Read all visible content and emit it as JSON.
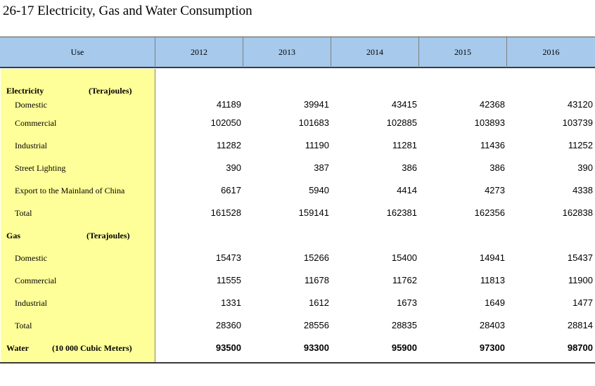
{
  "title": "26-17  Electricity, Gas and Water Consumption",
  "header": {
    "use": "Use",
    "years": [
      "2012",
      "2013",
      "2014",
      "2015",
      "2016"
    ]
  },
  "sections": {
    "electricity": {
      "label": "Electricity",
      "unit": "(Terajoules)",
      "rows": [
        {
          "label": "Domestic",
          "values": [
            "41189",
            "39941",
            "43415",
            "42368",
            "43120"
          ]
        },
        {
          "label": "Commercial",
          "values": [
            "102050",
            "101683",
            "102885",
            "103893",
            "103739"
          ]
        },
        {
          "label": "Industrial",
          "values": [
            "11282",
            "11190",
            "11281",
            "11436",
            "11252"
          ]
        },
        {
          "label": "Street Lighting",
          "values": [
            "390",
            "387",
            "386",
            "386",
            "390"
          ]
        },
        {
          "label": "Export to the Mainland of China",
          "values": [
            "6617",
            "5940",
            "4414",
            "4273",
            "4338"
          ]
        },
        {
          "label": "Total",
          "values": [
            "161528",
            "159141",
            "162381",
            "162356",
            "162838"
          ]
        }
      ]
    },
    "gas": {
      "label": "Gas",
      "unit": "(Terajoules)",
      "rows": [
        {
          "label": "Domestic",
          "values": [
            "15473",
            "15266",
            "15400",
            "14941",
            "15437"
          ]
        },
        {
          "label": "Commercial",
          "values": [
            "11555",
            "11678",
            "11762",
            "11813",
            "11900"
          ]
        },
        {
          "label": "Industrial",
          "values": [
            "1331",
            "1612",
            "1673",
            "1649",
            "1477"
          ]
        },
        {
          "label": "Total",
          "values": [
            "28360",
            "28556",
            "28835",
            "28403",
            "28814"
          ]
        }
      ]
    },
    "water": {
      "label": "Water",
      "unit": "(10 000 Cubic Meters)",
      "values": [
        "93500",
        "93300",
        "95900",
        "97300",
        "98700"
      ]
    }
  },
  "colors": {
    "header_bg": "#a6c9ec",
    "use_column_bg": "#ffff99"
  }
}
